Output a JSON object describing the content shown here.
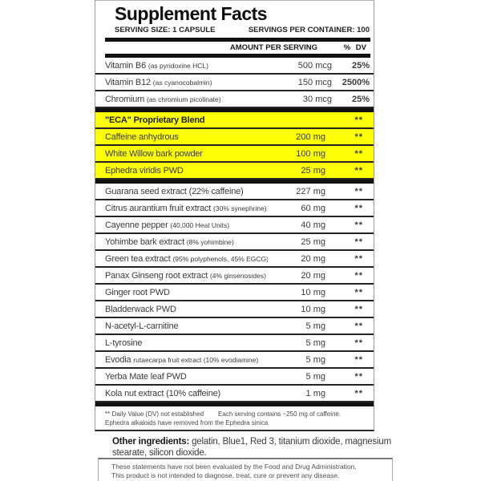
{
  "label": {
    "title": "Supplement Facts",
    "serving_size": "SERVING SIZE: 1 CAPSULE",
    "servings_per_container": "SERVINGS PER CONTAINER: 100",
    "col_amount": "AMOUNT PER SERVING",
    "col_dv": "% DV",
    "rows": [
      {
        "name": "Vitamin B6",
        "detail": "(as pyridoxine HCL)",
        "amount": "500 mcg",
        "dv": "25%"
      },
      {
        "name": "Vitamin B12",
        "detail": "(as cyanocobalmin)",
        "amount": "150 mcg",
        "dv": "2500%"
      },
      {
        "name": "Chromium",
        "detail": "(as chromium picolinate)",
        "amount": "30 mcg",
        "dv": "25%",
        "thick_after": true
      },
      {
        "name": "\"ECA\" Proprietary Blend",
        "detail": "",
        "amount": "",
        "dv": "**",
        "highlight": true,
        "bold": true
      },
      {
        "name": "Caffeine anhydrous",
        "detail": "",
        "amount": "200 mg",
        "dv": "**",
        "highlight": true
      },
      {
        "name": "White Willow bark powder",
        "detail": "",
        "amount": "100 mg",
        "dv": "**",
        "highlight": true
      },
      {
        "name": "Ephedra viridis PWD",
        "detail": "",
        "amount": "25 mg",
        "dv": "**",
        "highlight": true,
        "thick_after": true
      },
      {
        "name": "Guarana seed extract (22% caffeine)",
        "detail": "",
        "amount": "227 mg",
        "dv": "**"
      },
      {
        "name": "Citrus aurantium fruit extract",
        "detail": "(30% synephrine)",
        "amount": "60 mg",
        "dv": "**"
      },
      {
        "name": "Cayenne pepper",
        "detail": "(40,000 Heat Units)",
        "amount": "40 mg",
        "dv": "**"
      },
      {
        "name": "Yohimbe bark extract",
        "detail": "(8% yohimbine)",
        "amount": "25 mg",
        "dv": "**"
      },
      {
        "name": "Green tea extract",
        "detail": "(95% polyphenols, 45% EGCG)",
        "amount": "20 mg",
        "dv": "**"
      },
      {
        "name": "Panax Ginseng root extract",
        "detail": "(4% ginsenosides)",
        "amount": "20 mg",
        "dv": "**"
      },
      {
        "name": "Ginger root PWD",
        "detail": "",
        "amount": "10 mg",
        "dv": "**"
      },
      {
        "name": "Bladderwack PWD",
        "detail": "",
        "amount": "10 mg",
        "dv": "**"
      },
      {
        "name": "N-acetyl-L-carnitine",
        "detail": "",
        "amount": "5 mg",
        "dv": "**"
      },
      {
        "name": "L-tyrosine",
        "detail": "",
        "amount": "5 mg",
        "dv": "**"
      },
      {
        "name": "Evodia",
        "detail": "rutaecarpa fruit extract (10% evodiamine)",
        "amount": "5 mg",
        "dv": "**"
      },
      {
        "name": "Yerba Mate leaf PWD",
        "detail": "",
        "amount": "5 mg",
        "dv": "**"
      },
      {
        "name": "Kola nut extract (10% caffeine)",
        "detail": "",
        "amount": "1 mg",
        "dv": "**",
        "thick_after": true
      }
    ],
    "footnote_line1a": "** Daily Value (DV) not established",
    "footnote_line1b": "Each serving contains ~250 mg of caffeine.",
    "footnote_line2": "Ephedra alkaloids have removed from the Ephedra sinica"
  },
  "other_ingredients": {
    "label": "Other ingredients:",
    "text": " gelatin, Blue1, Red 3, titanium dioxide, magnesium stearate, silicon dioxide."
  },
  "disclaimer": {
    "line1": "These statements have not been evaluated by the Food and Drug Administration.",
    "line2": "This product is not intended to diagnose, treat, cure or prevent any disease."
  },
  "colors": {
    "highlight": "#fdfd05",
    "bar": "#111111",
    "text": "#3b3b3b"
  }
}
